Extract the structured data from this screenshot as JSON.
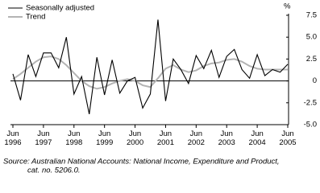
{
  "chart_data": {
    "type": "line",
    "y_unit": "%",
    "categories": [
      "Jun 1996",
      null,
      null,
      null,
      "Jun 1997",
      null,
      null,
      null,
      "Jun 1998",
      null,
      null,
      null,
      "Jun 1999",
      null,
      null,
      null,
      "Jun 2000",
      null,
      null,
      null,
      "Jun 2001",
      null,
      null,
      null,
      "Jun 2002",
      null,
      null,
      null,
      "Jun 2003",
      null,
      null,
      null,
      "Jun 2004",
      null,
      null,
      null,
      "Jun 2005"
    ],
    "series": [
      {
        "name": "Seasonally adjusted",
        "color": "#000000",
        "values": [
          0.8,
          -2.2,
          3.0,
          0.5,
          3.2,
          3.2,
          1.5,
          5.0,
          -1.5,
          0.5,
          -3.8,
          2.7,
          -1.6,
          2.4,
          -1.4,
          0.0,
          0.4,
          -3.1,
          -1.5,
          7.0,
          -2.3,
          2.5,
          1.3,
          -0.3,
          2.9,
          1.4,
          3.5,
          0.4,
          2.8,
          3.6,
          1.3,
          0.3,
          3.0,
          0.6,
          1.3,
          1.0,
          1.9
        ]
      },
      {
        "name": "Trend",
        "color": "#b4b4b4",
        "values": [
          0.2,
          0.8,
          1.5,
          2.2,
          2.7,
          2.8,
          2.5,
          1.8,
          0.9,
          0.0,
          -0.6,
          -0.9,
          -0.7,
          -0.3,
          0.0,
          0.2,
          0.0,
          -0.5,
          -0.7,
          0.3,
          1.4,
          1.8,
          1.3,
          1.0,
          1.2,
          1.7,
          2.0,
          2.1,
          2.4,
          2.5,
          2.2,
          1.7,
          1.4,
          1.3,
          1.3,
          1.3,
          1.3
        ]
      }
    ],
    "ylim": [
      -5,
      7.5
    ],
    "yticks": [
      {
        "value": 7.5,
        "label": "7.5"
      },
      {
        "value": 5,
        "label": "5.0"
      },
      2.5,
      0,
      -2.5,
      {
        "value": -5,
        "label": "-5.0"
      }
    ],
    "source": [
      "Source: Australian National Accounts: National Income, Expenditure and Product,",
      "cat. no. 5206.0."
    ]
  }
}
